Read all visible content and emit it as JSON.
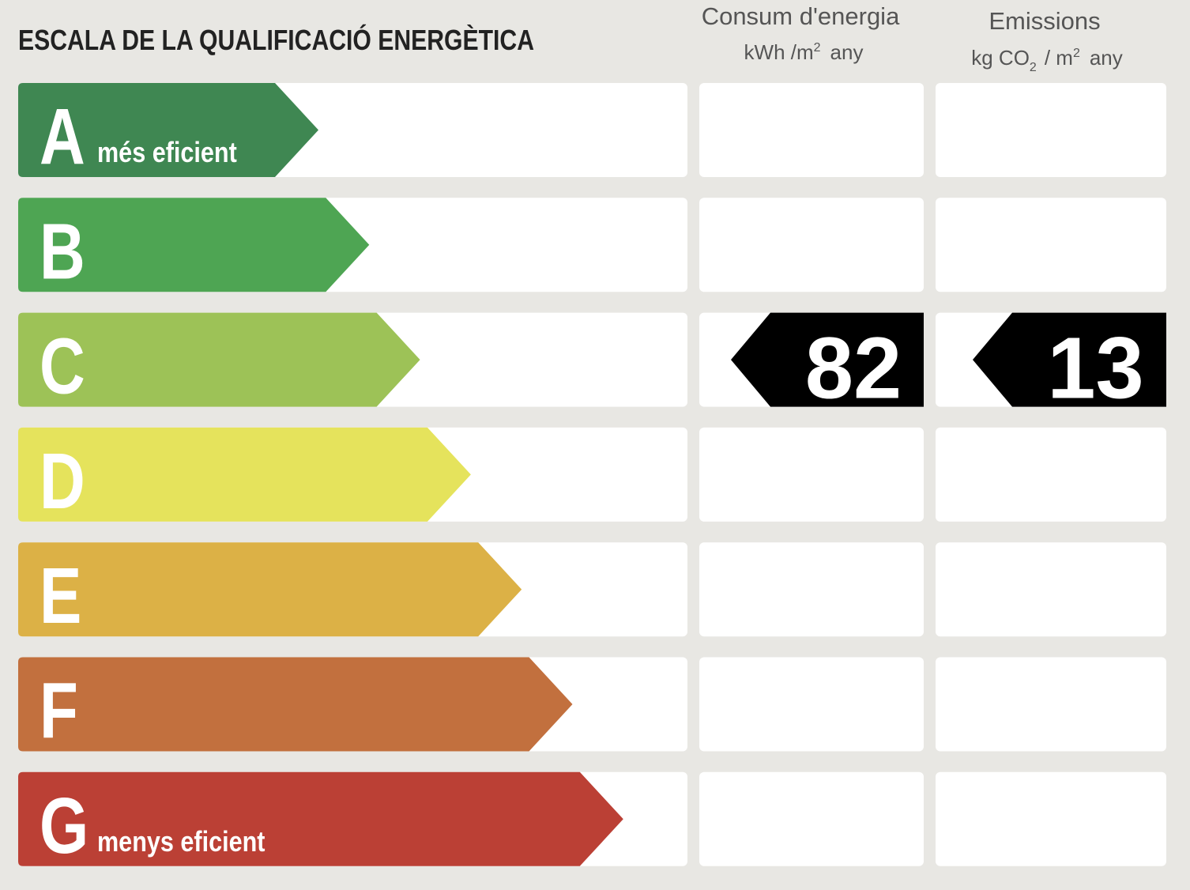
{
  "header": {
    "title": "ESCALA DE LA QUALIFICACIÓ ENERGÈTICA",
    "columns": [
      {
        "title": "Consum d'energia",
        "unit": [
          "kWh /m",
          "2",
          "any"
        ]
      },
      {
        "title": "Emissions",
        "unit": [
          "kg CO",
          "2",
          "/ m",
          "2",
          "any"
        ]
      }
    ]
  },
  "classes": [
    {
      "letter": "A",
      "note": "més eficient",
      "color": "#3f8752"
    },
    {
      "letter": "B",
      "color": "#4ea553"
    },
    {
      "letter": "C",
      "color": "#9dc257",
      "energy": 82,
      "emissions": 13
    },
    {
      "letter": "D",
      "color": "#e5e35c"
    },
    {
      "letter": "E",
      "color": "#dcb146"
    },
    {
      "letter": "F",
      "color": "#c2703e"
    },
    {
      "letter": "G",
      "note": "menys eficient",
      "color": "#bb4035"
    }
  ]
}
